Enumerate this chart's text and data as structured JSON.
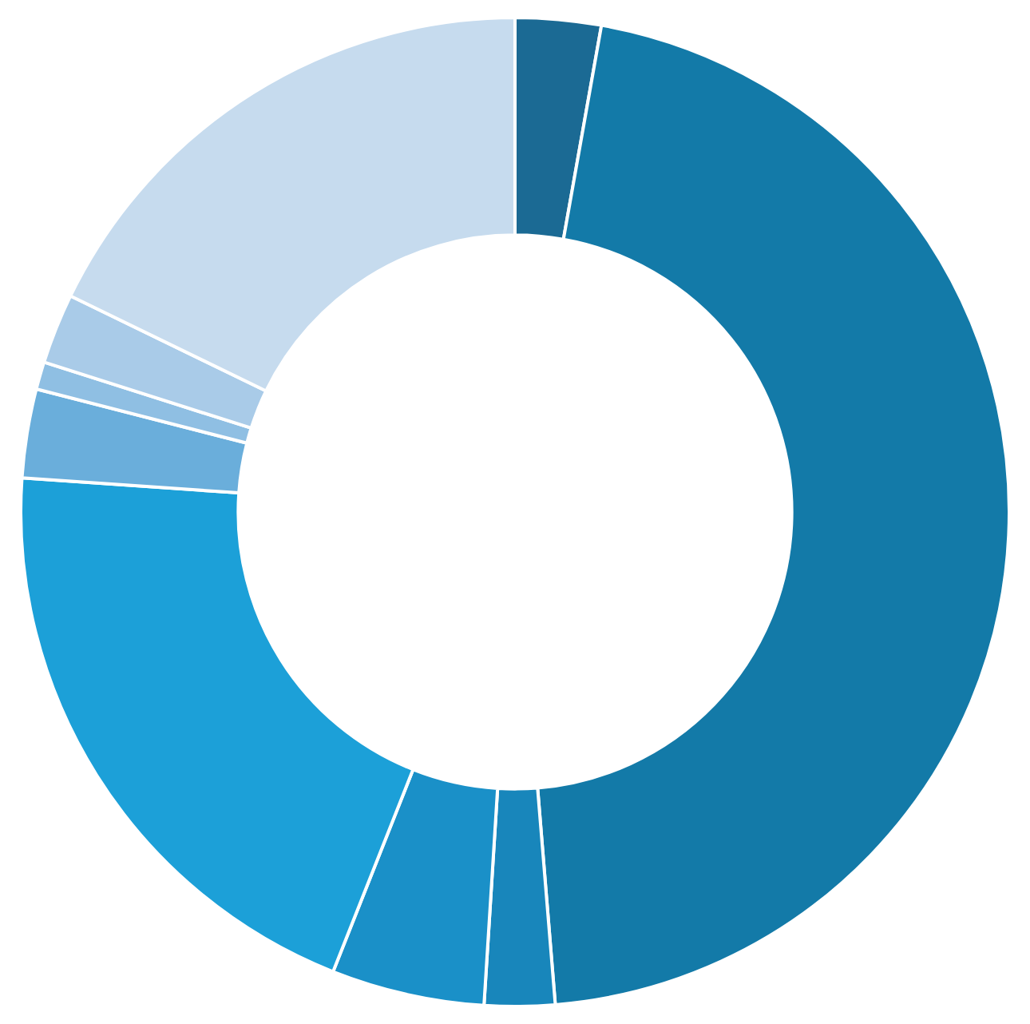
{
  "chart_data": {
    "type": "donut",
    "categories": [
      null,
      null,
      null,
      null,
      null,
      null,
      null,
      null,
      null
    ],
    "values": [
      2.8,
      45.9,
      2.3,
      5.0,
      20.1,
      2.9,
      0.9,
      2.3,
      17.8
    ],
    "colors": [
      "#1b6a94",
      "#137aa8",
      "#1886bb",
      "#1a90c8",
      "#1ca0d8",
      "#6aaedb",
      "#8fbfe3",
      "#a9cbe8",
      "#c6dbee"
    ]
  }
}
